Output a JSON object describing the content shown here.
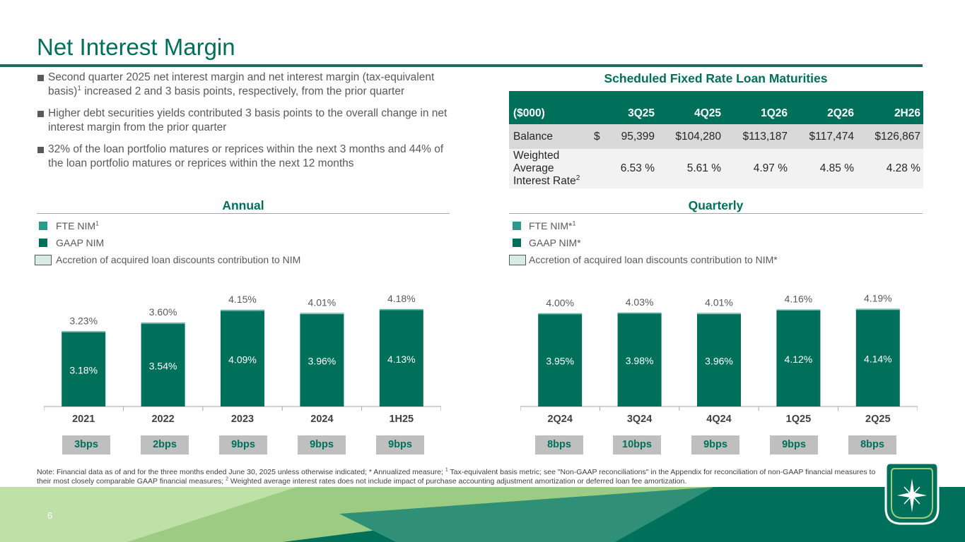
{
  "title": "Net Interest Margin",
  "bullets": [
    {
      "text": "Second quarter 2025 net interest margin and net interest margin (tax-equivalent basis)",
      "sup": "1",
      "text2": " increased 2 and 3 basis points, respectively, from the prior quarter"
    },
    {
      "text": "Higher debt securities yields contributed 3 basis points to the overall change in net interest margin from the prior quarter",
      "sup": "",
      "text2": ""
    },
    {
      "text": "32% of the loan portfolio matures or reprices within the next 3 months and 44% of the loan portfolio matures or reprices within the next 12 months",
      "sup": "",
      "text2": ""
    }
  ],
  "table": {
    "title": "Scheduled Fixed Rate Loan Maturities",
    "headers": [
      "($000)",
      "3Q25",
      "4Q25",
      "1Q26",
      "2Q26",
      "2H26"
    ],
    "balance_label": "Balance",
    "balance_currency": "$",
    "balance": [
      "95,399",
      "$104,280",
      "$113,187",
      "$117,474",
      "$126,867"
    ],
    "rate_label": "Weighted Average Interest Rate",
    "rate_label_sup": "2",
    "rates": [
      "6.53 %",
      "5.61 %",
      "4.97 %",
      "4.85 %",
      "4.28 %"
    ]
  },
  "annual": {
    "section_title": "Annual",
    "legend": {
      "fte": "FTE NIM",
      "fte_sup": "1",
      "gaap": "GAAP NIM",
      "accretion": "Accretion of acquired loan discounts contribution to NIM"
    },
    "bps": [
      "3bps",
      "2bps",
      "9bps",
      "9bps",
      "9bps"
    ]
  },
  "quarterly": {
    "section_title": "Quarterly",
    "legend": {
      "fte": "FTE NIM*",
      "fte_sup": "1",
      "gaap": "GAAP NIM*",
      "accretion": "Accretion of acquired loan discounts contribution to NIM*"
    },
    "bps": [
      "8bps",
      "10bps",
      "9bps",
      "9bps",
      "8bps"
    ]
  },
  "colors": {
    "gaap": "#00705a",
    "fte": "#2a9b8a",
    "accretion": "#d6ece4",
    "accent": "#00705a"
  },
  "chart_data": [
    {
      "type": "bar",
      "title": "Annual",
      "categories": [
        "2021",
        "2022",
        "2023",
        "2024",
        "1H25"
      ],
      "series": [
        {
          "name": "GAAP NIM",
          "values": [
            3.18,
            3.54,
            4.09,
            3.96,
            4.13
          ],
          "labels": [
            "3.18%",
            "3.54%",
            "4.09%",
            "3.96%",
            "4.13%"
          ]
        },
        {
          "name": "FTE NIM",
          "values": [
            3.23,
            3.6,
            4.15,
            4.01,
            4.18
          ],
          "labels": [
            "3.23%",
            "3.60%",
            "4.15%",
            "4.01%",
            "4.18%"
          ]
        }
      ],
      "accretion_bps": [
        "3bps",
        "2bps",
        "9bps",
        "9bps",
        "9bps"
      ],
      "ylim": [
        0,
        4.6
      ]
    },
    {
      "type": "bar",
      "title": "Quarterly",
      "categories": [
        "2Q24",
        "3Q24",
        "4Q24",
        "1Q25",
        "2Q25"
      ],
      "series": [
        {
          "name": "GAAP NIM*",
          "values": [
            3.95,
            3.98,
            3.96,
            4.12,
            4.14
          ],
          "labels": [
            "3.95%",
            "3.98%",
            "3.96%",
            "4.12%",
            "4.14%"
          ]
        },
        {
          "name": "FTE NIM*",
          "values": [
            4.0,
            4.03,
            4.01,
            4.16,
            4.19
          ],
          "labels": [
            "4.00%",
            "4.03%",
            "4.01%",
            "4.16%",
            "4.19%"
          ]
        }
      ],
      "accretion_bps": [
        "8bps",
        "10bps",
        "9bps",
        "9bps",
        "8bps"
      ],
      "ylim": [
        0,
        4.6
      ]
    }
  ],
  "note": {
    "p1": "Note: Financial data as of and for the three months ended June 30, 2025 unless otherwise indicated; * Annualized measure; ",
    "sup1": "1",
    "p2": " Tax-equivalent basis metric; see \"Non-GAAP reconciliations\" in the Appendix for reconciliation of non-GAAP financial measures to their most closely comparable GAAP financial measures; ",
    "sup2": "2",
    "p3": " Weighted average interest rates does not include impact of purchase accounting adjustment amortization or deferred loan fee amortization."
  },
  "page_number": "6"
}
